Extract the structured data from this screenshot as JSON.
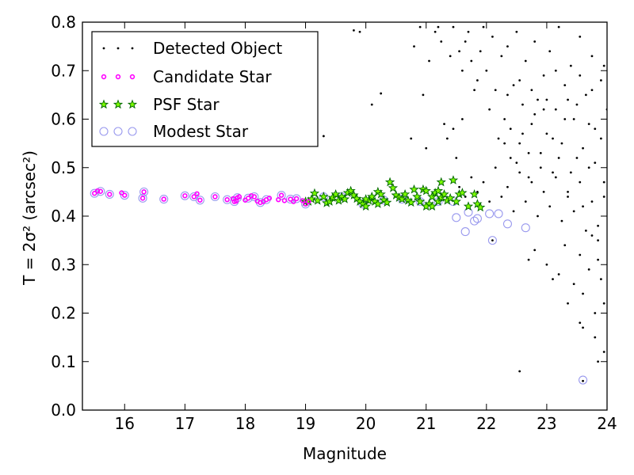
{
  "chart_data": {
    "type": "scatter",
    "xlabel": "Magnitude",
    "ylabel": "T = 2σ² (arcsec²)",
    "xlim": [
      15.3,
      24
    ],
    "ylim": [
      0.0,
      0.8
    ],
    "x_ticks": [
      "16",
      "17",
      "18",
      "19",
      "20",
      "21",
      "22",
      "23",
      "24"
    ],
    "y_ticks": [
      "0.0",
      "0.1",
      "0.2",
      "0.3",
      "0.4",
      "0.5",
      "0.6",
      "0.7",
      "0.8"
    ],
    "grid": false,
    "legend_position": "top-left",
    "colors": {
      "detected": "#000000",
      "candidate": "#ff00ff",
      "psf_edge": "#006400",
      "psf_fill": "#7cfc00",
      "modest": "#9999ee"
    },
    "series": [
      {
        "name": "Detected Object",
        "marker": "dot",
        "points": [
          [
            19.8,
            0.783
          ],
          [
            19.9,
            0.78
          ],
          [
            20.25,
            0.653
          ],
          [
            20.1,
            0.63
          ],
          [
            19.3,
            0.565
          ],
          [
            20.75,
            0.56
          ],
          [
            20.95,
            0.65
          ],
          [
            21.0,
            0.54
          ],
          [
            21.3,
            0.59
          ],
          [
            21.35,
            0.56
          ],
          [
            21.5,
            0.52
          ],
          [
            21.45,
            0.58
          ],
          [
            21.6,
            0.6
          ],
          [
            20.8,
            0.75
          ],
          [
            20.9,
            0.79
          ],
          [
            21.05,
            0.72
          ],
          [
            21.15,
            0.78
          ],
          [
            21.2,
            0.79
          ],
          [
            21.25,
            0.76
          ],
          [
            21.4,
            0.73
          ],
          [
            21.45,
            0.79
          ],
          [
            21.55,
            0.74
          ],
          [
            21.6,
            0.7
          ],
          [
            21.65,
            0.76
          ],
          [
            21.7,
            0.78
          ],
          [
            21.75,
            0.72
          ],
          [
            21.8,
            0.66
          ],
          [
            21.85,
            0.68
          ],
          [
            21.9,
            0.74
          ],
          [
            21.95,
            0.79
          ],
          [
            22.0,
            0.7
          ],
          [
            22.05,
            0.62
          ],
          [
            22.1,
            0.77
          ],
          [
            22.15,
            0.66
          ],
          [
            22.2,
            0.56
          ],
          [
            22.25,
            0.73
          ],
          [
            22.3,
            0.6
          ],
          [
            22.35,
            0.75
          ],
          [
            22.4,
            0.52
          ],
          [
            22.45,
            0.67
          ],
          [
            22.5,
            0.78
          ],
          [
            22.55,
            0.55
          ],
          [
            22.6,
            0.63
          ],
          [
            22.65,
            0.72
          ],
          [
            22.7,
            0.48
          ],
          [
            22.75,
            0.59
          ],
          [
            22.8,
            0.76
          ],
          [
            22.85,
            0.64
          ],
          [
            22.9,
            0.53
          ],
          [
            22.95,
            0.69
          ],
          [
            23.0,
            0.57
          ],
          [
            23.05,
            0.74
          ],
          [
            23.1,
            0.49
          ],
          [
            23.15,
            0.62
          ],
          [
            23.2,
            0.79
          ],
          [
            23.25,
            0.55
          ],
          [
            23.3,
            0.67
          ],
          [
            23.35,
            0.45
          ],
          [
            23.4,
            0.71
          ],
          [
            23.45,
            0.6
          ],
          [
            23.5,
            0.52
          ],
          [
            23.55,
            0.77
          ],
          [
            23.6,
            0.42
          ],
          [
            23.65,
            0.65
          ],
          [
            23.7,
            0.5
          ],
          [
            23.75,
            0.73
          ],
          [
            23.8,
            0.58
          ],
          [
            23.85,
            0.38
          ],
          [
            23.9,
            0.68
          ],
          [
            23.95,
            0.47
          ],
          [
            24.0,
            0.62
          ],
          [
            21.55,
            0.46
          ],
          [
            21.65,
            0.44
          ],
          [
            21.75,
            0.48
          ],
          [
            21.85,
            0.45
          ],
          [
            21.95,
            0.47
          ],
          [
            22.05,
            0.43
          ],
          [
            22.15,
            0.5
          ],
          [
            22.25,
            0.44
          ],
          [
            22.35,
            0.46
          ],
          [
            22.45,
            0.41
          ],
          [
            22.55,
            0.49
          ],
          [
            22.65,
            0.43
          ],
          [
            22.75,
            0.47
          ],
          [
            22.85,
            0.4
          ],
          [
            22.95,
            0.45
          ],
          [
            23.05,
            0.42
          ],
          [
            23.15,
            0.48
          ],
          [
            23.25,
            0.39
          ],
          [
            23.35,
            0.44
          ],
          [
            23.45,
            0.41
          ],
          [
            23.55,
            0.47
          ],
          [
            23.65,
            0.37
          ],
          [
            23.75,
            0.43
          ],
          [
            23.85,
            0.35
          ],
          [
            23.95,
            0.44
          ],
          [
            22.3,
            0.55
          ],
          [
            22.4,
            0.58
          ],
          [
            22.5,
            0.51
          ],
          [
            22.6,
            0.57
          ],
          [
            22.7,
            0.53
          ],
          [
            22.8,
            0.61
          ],
          [
            22.9,
            0.5
          ],
          [
            23.0,
            0.64
          ],
          [
            23.1,
            0.56
          ],
          [
            23.2,
            0.52
          ],
          [
            23.3,
            0.6
          ],
          [
            23.4,
            0.49
          ],
          [
            23.5,
            0.63
          ],
          [
            23.6,
            0.54
          ],
          [
            23.7,
            0.59
          ],
          [
            23.8,
            0.51
          ],
          [
            23.9,
            0.56
          ],
          [
            22.35,
            0.65
          ],
          [
            22.55,
            0.68
          ],
          [
            22.75,
            0.66
          ],
          [
            22.95,
            0.62
          ],
          [
            23.15,
            0.7
          ],
          [
            23.35,
            0.64
          ],
          [
            23.55,
            0.69
          ],
          [
            23.75,
            0.66
          ],
          [
            23.95,
            0.71
          ],
          [
            22.7,
            0.31
          ],
          [
            22.8,
            0.33
          ],
          [
            23.0,
            0.3
          ],
          [
            23.2,
            0.28
          ],
          [
            23.3,
            0.34
          ],
          [
            23.45,
            0.26
          ],
          [
            23.55,
            0.32
          ],
          [
            23.6,
            0.24
          ],
          [
            23.7,
            0.29
          ],
          [
            23.8,
            0.2
          ],
          [
            23.85,
            0.31
          ],
          [
            23.9,
            0.27
          ],
          [
            23.95,
            0.22
          ],
          [
            23.55,
            0.18
          ],
          [
            23.6,
            0.17
          ],
          [
            23.8,
            0.15
          ],
          [
            23.85,
            0.1
          ],
          [
            23.95,
            0.12
          ],
          [
            22.55,
            0.08
          ],
          [
            23.1,
            0.27
          ],
          [
            23.35,
            0.22
          ],
          [
            23.75,
            0.36
          ],
          [
            22.1,
            0.35
          ],
          [
            23.6,
            0.06
          ]
        ]
      },
      {
        "name": "Candidate Star",
        "marker": "small-circle",
        "points": [
          [
            15.5,
            0.447
          ],
          [
            15.55,
            0.452
          ],
          [
            15.6,
            0.451
          ],
          [
            15.75,
            0.445
          ],
          [
            15.95,
            0.448
          ],
          [
            16.0,
            0.443
          ],
          [
            16.3,
            0.437
          ],
          [
            16.32,
            0.45
          ],
          [
            16.65,
            0.435
          ],
          [
            17.0,
            0.442
          ],
          [
            17.15,
            0.44
          ],
          [
            17.2,
            0.446
          ],
          [
            17.25,
            0.433
          ],
          [
            17.5,
            0.44
          ],
          [
            17.7,
            0.434
          ],
          [
            17.8,
            0.436
          ],
          [
            17.82,
            0.43
          ],
          [
            17.85,
            0.431
          ],
          [
            17.87,
            0.438
          ],
          [
            17.9,
            0.44
          ],
          [
            18.0,
            0.433
          ],
          [
            18.05,
            0.437
          ],
          [
            18.1,
            0.442
          ],
          [
            18.15,
            0.44
          ],
          [
            18.2,
            0.431
          ],
          [
            18.25,
            0.428
          ],
          [
            18.3,
            0.43
          ],
          [
            18.35,
            0.434
          ],
          [
            18.4,
            0.437
          ],
          [
            18.55,
            0.434
          ],
          [
            18.6,
            0.443
          ],
          [
            18.65,
            0.432
          ],
          [
            18.75,
            0.435
          ],
          [
            18.8,
            0.43
          ],
          [
            18.85,
            0.436
          ],
          [
            18.95,
            0.432
          ],
          [
            19.0,
            0.425
          ],
          [
            19.05,
            0.43
          ]
        ]
      },
      {
        "name": "PSF Star",
        "marker": "star",
        "points": [
          [
            19.0,
            0.43
          ],
          [
            19.05,
            0.43
          ],
          [
            19.1,
            0.435
          ],
          [
            19.15,
            0.447
          ],
          [
            19.2,
            0.432
          ],
          [
            19.3,
            0.44
          ],
          [
            19.35,
            0.427
          ],
          [
            19.4,
            0.43
          ],
          [
            19.45,
            0.438
          ],
          [
            19.5,
            0.445
          ],
          [
            19.55,
            0.432
          ],
          [
            19.6,
            0.44
          ],
          [
            19.65,
            0.435
          ],
          [
            19.7,
            0.448
          ],
          [
            19.75,
            0.452
          ],
          [
            19.8,
            0.443
          ],
          [
            19.85,
            0.436
          ],
          [
            19.9,
            0.43
          ],
          [
            19.95,
            0.425
          ],
          [
            20.0,
            0.42
          ],
          [
            20.05,
            0.432
          ],
          [
            20.1,
            0.44
          ],
          [
            20.15,
            0.43
          ],
          [
            20.2,
            0.45
          ],
          [
            20.25,
            0.445
          ],
          [
            20.3,
            0.433
          ],
          [
            20.35,
            0.428
          ],
          [
            20.4,
            0.47
          ],
          [
            20.45,
            0.458
          ],
          [
            20.5,
            0.443
          ],
          [
            20.55,
            0.438
          ],
          [
            20.6,
            0.435
          ],
          [
            20.65,
            0.445
          ],
          [
            20.7,
            0.432
          ],
          [
            20.75,
            0.428
          ],
          [
            20.8,
            0.455
          ],
          [
            20.85,
            0.44
          ],
          [
            20.9,
            0.43
          ],
          [
            20.95,
            0.455
          ],
          [
            21.0,
            0.452
          ],
          [
            21.05,
            0.425
          ],
          [
            21.1,
            0.44
          ],
          [
            21.15,
            0.448
          ],
          [
            21.2,
            0.43
          ],
          [
            21.25,
            0.438
          ],
          [
            21.3,
            0.445
          ],
          [
            21.35,
            0.432
          ],
          [
            21.4,
            0.437
          ],
          [
            21.45,
            0.474
          ],
          [
            21.5,
            0.43
          ],
          [
            21.55,
            0.445
          ],
          [
            21.6,
            0.448
          ],
          [
            21.7,
            0.42
          ],
          [
            21.8,
            0.445
          ],
          [
            21.85,
            0.425
          ],
          [
            21.9,
            0.418
          ],
          [
            21.0,
            0.42
          ],
          [
            21.1,
            0.42
          ],
          [
            21.2,
            0.452
          ],
          [
            20.0,
            0.435
          ],
          [
            20.2,
            0.425
          ],
          [
            21.25,
            0.47
          ]
        ]
      },
      {
        "name": "Modest Star",
        "marker": "large-open-circle",
        "points": [
          [
            15.5,
            0.447
          ],
          [
            15.6,
            0.451
          ],
          [
            15.75,
            0.445
          ],
          [
            16.0,
            0.443
          ],
          [
            16.3,
            0.437
          ],
          [
            16.32,
            0.45
          ],
          [
            16.65,
            0.435
          ],
          [
            17.0,
            0.442
          ],
          [
            17.15,
            0.44
          ],
          [
            17.25,
            0.433
          ],
          [
            17.5,
            0.44
          ],
          [
            17.7,
            0.434
          ],
          [
            17.82,
            0.43
          ],
          [
            17.87,
            0.438
          ],
          [
            18.05,
            0.437
          ],
          [
            18.15,
            0.44
          ],
          [
            18.25,
            0.428
          ],
          [
            18.35,
            0.434
          ],
          [
            18.6,
            0.443
          ],
          [
            18.75,
            0.435
          ],
          [
            18.85,
            0.436
          ],
          [
            19.0,
            0.425
          ],
          [
            19.3,
            0.44
          ],
          [
            19.6,
            0.44
          ],
          [
            19.95,
            0.425
          ],
          [
            20.3,
            0.433
          ],
          [
            20.6,
            0.435
          ],
          [
            20.9,
            0.43
          ],
          [
            21.2,
            0.43
          ],
          [
            21.5,
            0.397
          ],
          [
            21.65,
            0.368
          ],
          [
            21.7,
            0.408
          ],
          [
            21.8,
            0.39
          ],
          [
            21.85,
            0.395
          ],
          [
            22.05,
            0.405
          ],
          [
            22.1,
            0.35
          ],
          [
            22.2,
            0.405
          ],
          [
            22.35,
            0.384
          ],
          [
            22.65,
            0.376
          ],
          [
            23.6,
            0.062
          ],
          [
            21.45,
            0.43
          ]
        ]
      }
    ]
  }
}
